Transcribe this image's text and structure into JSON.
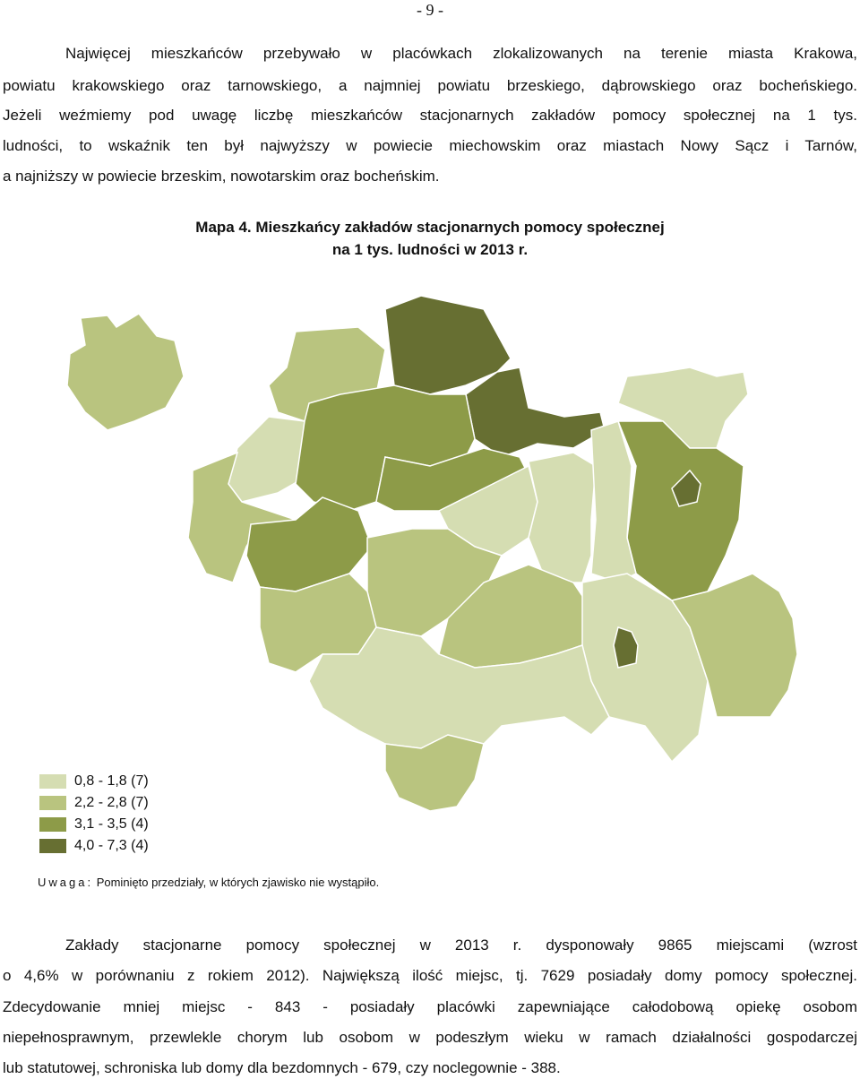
{
  "page_number": "- 9 -",
  "paragraphs": [
    {
      "lines": [
        "Najwięcej mieszkańców przebywało w placówkach zlokalizowanych na terenie miasta Krakowa,",
        "powiatu krakowskiego oraz tarnowskiego, a najmniej powiatu brzeskiego, dąbrowskiego oraz bocheńskiego.",
        "Jeżeli weźmiemy pod uwagę liczbę mieszkańców stacjonarnych zakładów pomocy społecznej na 1 tys.",
        "ludności, to wskaźnik ten był najwyższy w powiecie miechowskim oraz miastach Nowy Sącz i Tarnów,",
        "a najniższy w powiecie brzeskim, nowotarskim oraz bocheńskim."
      ]
    },
    {
      "lines": [
        "Zakłady stacjonarne pomocy społecznej w 2013 r. dysponowały 9865 miejscami (wzrost",
        "o 4,6% w porównaniu z rokiem 2012). Największą ilość miejsc, tj. 7629 posiadały domy pomocy społecznej.",
        "Zdecydowanie mniej miejsc - 843 - posiadały placówki zapewniające całodobową opiekę osobom",
        "niepełnosprawnym, przewlekle chorym lub osobom w podeszłym wieku w ramach działalności gospodarczej",
        "lub statutowej, schroniska lub domy dla bezdomnych - 679, czy noclegownie - 388."
      ]
    }
  ],
  "map": {
    "title": [
      "Mapa 4. Mieszkańcy zakładów stacjonarnych pomocy społecznej",
      "na 1 tys. ludności w 2013 r."
    ],
    "legend": [
      {
        "label": "0,8 - 1,8 (7)",
        "color": "#d5ddb2"
      },
      {
        "label": "2,2 - 2,8 (7)",
        "color": "#b9c47f"
      },
      {
        "label": "3,1 - 3,5 (4)",
        "color": "#8d9b48"
      },
      {
        "label": "4,0 - 7,3 (4)",
        "color": "#676f32"
      }
    ],
    "note_label": "Uwaga:",
    "note": "Pominięto przedziały, w których zjawisko nie wystąpiło."
  }
}
